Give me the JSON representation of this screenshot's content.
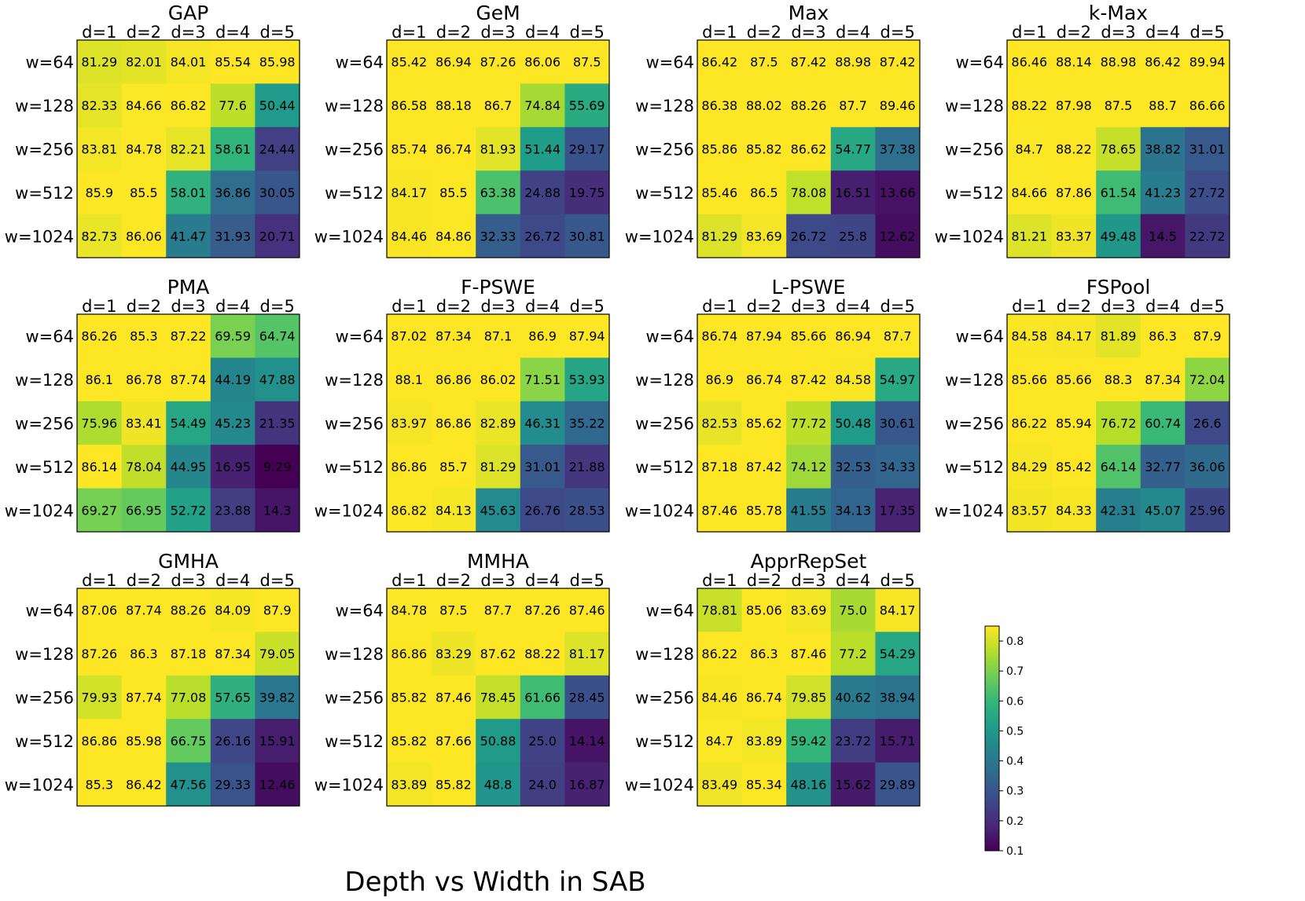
{
  "figure_title": "Depth vs Width in SAB",
  "colormap": {
    "name": "viridis",
    "stops": [
      "#440154",
      "#482878",
      "#3e4989",
      "#31688e",
      "#26828e",
      "#1f9e89",
      "#35b779",
      "#6ece58",
      "#b5de2b",
      "#fde725"
    ]
  },
  "colorbar": {
    "ticks": [
      "0.1",
      "0.2",
      "0.3",
      "0.4",
      "0.5",
      "0.6",
      "0.7",
      "0.8"
    ],
    "range": [
      0.1,
      0.85
    ]
  },
  "chart_data": [
    {
      "type": "heatmap",
      "title": "GAP",
      "columns": [
        "d=1",
        "d=2",
        "d=3",
        "d=4",
        "d=5"
      ],
      "rows": [
        "w=64",
        "w=128",
        "w=256",
        "w=512",
        "w=1024"
      ],
      "values": [
        [
          81.29,
          82.01,
          84.01,
          85.54,
          85.98
        ],
        [
          82.33,
          84.66,
          86.82,
          77.6,
          50.44
        ],
        [
          83.81,
          84.78,
          82.21,
          58.61,
          24.44
        ],
        [
          85.9,
          85.5,
          58.01,
          36.86,
          30.05
        ],
        [
          82.73,
          86.06,
          41.47,
          31.93,
          20.71
        ]
      ],
      "labels": [
        [
          "81.29",
          "82.01",
          "84.01",
          "85.54",
          "85.98"
        ],
        [
          "82.33",
          "84.66",
          "86.82",
          "77.6",
          "50.44"
        ],
        [
          "83.81",
          "84.78",
          "82.21",
          "58.61",
          "24.44"
        ],
        [
          "85.9",
          "85.5",
          "58.01",
          "36.86",
          "30.05"
        ],
        [
          "82.73",
          "86.06",
          "41.47",
          "31.93",
          "20.71"
        ]
      ]
    },
    {
      "type": "heatmap",
      "title": "GeM",
      "columns": [
        "d=1",
        "d=2",
        "d=3",
        "d=4",
        "d=5"
      ],
      "rows": [
        "w=64",
        "w=128",
        "w=256",
        "w=512",
        "w=1024"
      ],
      "values": [
        [
          85.42,
          86.94,
          87.26,
          86.06,
          87.5
        ],
        [
          86.58,
          88.18,
          86.7,
          74.84,
          55.69
        ],
        [
          85.74,
          86.74,
          81.93,
          51.44,
          29.17
        ],
        [
          84.17,
          85.5,
          63.38,
          24.88,
          19.75
        ],
        [
          84.46,
          84.86,
          32.33,
          26.72,
          30.81
        ]
      ],
      "labels": [
        [
          "85.42",
          "86.94",
          "87.26",
          "86.06",
          "87.5"
        ],
        [
          "86.58",
          "88.18",
          "86.7",
          "74.84",
          "55.69"
        ],
        [
          "85.74",
          "86.74",
          "81.93",
          "51.44",
          "29.17"
        ],
        [
          "84.17",
          "85.5",
          "63.38",
          "24.88",
          "19.75"
        ],
        [
          "84.46",
          "84.86",
          "32.33",
          "26.72",
          "30.81"
        ]
      ]
    },
    {
      "type": "heatmap",
      "title": "Max",
      "columns": [
        "d=1",
        "d=2",
        "d=3",
        "d=4",
        "d=5"
      ],
      "rows": [
        "w=64",
        "w=128",
        "w=256",
        "w=512",
        "w=1024"
      ],
      "values": [
        [
          86.42,
          87.5,
          87.42,
          88.98,
          87.42
        ],
        [
          86.38,
          88.02,
          88.26,
          87.7,
          89.46
        ],
        [
          85.86,
          85.82,
          86.62,
          54.77,
          37.38
        ],
        [
          85.46,
          86.5,
          78.08,
          16.51,
          13.66
        ],
        [
          81.29,
          83.69,
          26.72,
          25.8,
          12.62
        ]
      ],
      "labels": [
        [
          "86.42",
          "87.5",
          "87.42",
          "88.98",
          "87.42"
        ],
        [
          "86.38",
          "88.02",
          "88.26",
          "87.7",
          "89.46"
        ],
        [
          "85.86",
          "85.82",
          "86.62",
          "54.77",
          "37.38"
        ],
        [
          "85.46",
          "86.5",
          "78.08",
          "16.51",
          "13.66"
        ],
        [
          "81.29",
          "83.69",
          "26.72",
          "25.8",
          "12.62"
        ]
      ]
    },
    {
      "type": "heatmap",
      "title": "k-Max",
      "columns": [
        "d=1",
        "d=2",
        "d=3",
        "d=4",
        "d=5"
      ],
      "rows": [
        "w=64",
        "w=128",
        "w=256",
        "w=512",
        "w=1024"
      ],
      "values": [
        [
          86.46,
          88.14,
          88.98,
          86.42,
          89.94
        ],
        [
          88.22,
          87.98,
          87.5,
          88.7,
          86.66
        ],
        [
          84.7,
          88.22,
          78.65,
          38.82,
          31.01
        ],
        [
          84.66,
          87.86,
          61.54,
          41.23,
          27.72
        ],
        [
          81.21,
          83.37,
          49.48,
          14.5,
          22.72
        ]
      ],
      "labels": [
        [
          "86.46",
          "88.14",
          "88.98",
          "86.42",
          "89.94"
        ],
        [
          "88.22",
          "87.98",
          "87.5",
          "88.7",
          "86.66"
        ],
        [
          "84.7",
          "88.22",
          "78.65",
          "38.82",
          "31.01"
        ],
        [
          "84.66",
          "87.86",
          "61.54",
          "41.23",
          "27.72"
        ],
        [
          "81.21",
          "83.37",
          "49.48",
          "14.5",
          "22.72"
        ]
      ]
    },
    {
      "type": "heatmap",
      "title": "PMA",
      "columns": [
        "d=1",
        "d=2",
        "d=3",
        "d=4",
        "d=5"
      ],
      "rows": [
        "w=64",
        "w=128",
        "w=256",
        "w=512",
        "w=1024"
      ],
      "values": [
        [
          86.26,
          85.3,
          87.22,
          69.59,
          64.74
        ],
        [
          86.1,
          86.78,
          87.74,
          44.19,
          47.88
        ],
        [
          75.96,
          83.41,
          54.49,
          45.23,
          21.35
        ],
        [
          86.14,
          78.04,
          44.95,
          16.95,
          9.29
        ],
        [
          69.27,
          66.95,
          52.72,
          23.88,
          14.3
        ]
      ],
      "labels": [
        [
          "86.26",
          "85.3",
          "87.22",
          "69.59",
          "64.74"
        ],
        [
          "86.1",
          "86.78",
          "87.74",
          "44.19",
          "47.88"
        ],
        [
          "75.96",
          "83.41",
          "54.49",
          "45.23",
          "21.35"
        ],
        [
          "86.14",
          "78.04",
          "44.95",
          "16.95",
          "9.29"
        ],
        [
          "69.27",
          "66.95",
          "52.72",
          "23.88",
          "14.3"
        ]
      ]
    },
    {
      "type": "heatmap",
      "title": "F-PSWE",
      "columns": [
        "d=1",
        "d=2",
        "d=3",
        "d=4",
        "d=5"
      ],
      "rows": [
        "w=64",
        "w=128",
        "w=256",
        "w=512",
        "w=1024"
      ],
      "values": [
        [
          87.02,
          87.34,
          87.1,
          86.9,
          87.94
        ],
        [
          88.1,
          86.86,
          86.02,
          71.51,
          53.93
        ],
        [
          83.97,
          86.86,
          82.89,
          46.31,
          35.22
        ],
        [
          86.86,
          85.7,
          81.29,
          31.01,
          21.88
        ],
        [
          86.82,
          84.13,
          45.63,
          26.76,
          28.53
        ]
      ],
      "labels": [
        [
          "87.02",
          "87.34",
          "87.1",
          "86.9",
          "87.94"
        ],
        [
          "88.1",
          "86.86",
          "86.02",
          "71.51",
          "53.93"
        ],
        [
          "83.97",
          "86.86",
          "82.89",
          "46.31",
          "35.22"
        ],
        [
          "86.86",
          "85.7",
          "81.29",
          "31.01",
          "21.88"
        ],
        [
          "86.82",
          "84.13",
          "45.63",
          "26.76",
          "28.53"
        ]
      ]
    },
    {
      "type": "heatmap",
      "title": "L-PSWE",
      "columns": [
        "d=1",
        "d=2",
        "d=3",
        "d=4",
        "d=5"
      ],
      "rows": [
        "w=64",
        "w=128",
        "w=256",
        "w=512",
        "w=1024"
      ],
      "values": [
        [
          86.74,
          87.94,
          85.66,
          86.94,
          87.7
        ],
        [
          86.9,
          86.74,
          87.42,
          84.58,
          54.97
        ],
        [
          82.53,
          85.62,
          77.72,
          50.48,
          30.61
        ],
        [
          87.18,
          87.42,
          74.12,
          32.53,
          34.33
        ],
        [
          87.46,
          85.78,
          41.55,
          34.13,
          17.35
        ]
      ],
      "labels": [
        [
          "86.74",
          "87.94",
          "85.66",
          "86.94",
          "87.7"
        ],
        [
          "86.9",
          "86.74",
          "87.42",
          "84.58",
          "54.97"
        ],
        [
          "82.53",
          "85.62",
          "77.72",
          "50.48",
          "30.61"
        ],
        [
          "87.18",
          "87.42",
          "74.12",
          "32.53",
          "34.33"
        ],
        [
          "87.46",
          "85.78",
          "41.55",
          "34.13",
          "17.35"
        ]
      ]
    },
    {
      "type": "heatmap",
      "title": "FSPool",
      "columns": [
        "d=1",
        "d=2",
        "d=3",
        "d=4",
        "d=5"
      ],
      "rows": [
        "w=64",
        "w=128",
        "w=256",
        "w=512",
        "w=1024"
      ],
      "values": [
        [
          84.58,
          84.17,
          81.89,
          86.3,
          87.9
        ],
        [
          85.66,
          85.66,
          88.3,
          87.34,
          72.04
        ],
        [
          86.22,
          85.94,
          76.72,
          60.74,
          26.6
        ],
        [
          84.29,
          85.42,
          64.14,
          32.77,
          36.06
        ],
        [
          83.57,
          84.33,
          42.31,
          45.07,
          25.96
        ]
      ],
      "labels": [
        [
          "84.58",
          "84.17",
          "81.89",
          "86.3",
          "87.9"
        ],
        [
          "85.66",
          "85.66",
          "88.3",
          "87.34",
          "72.04"
        ],
        [
          "86.22",
          "85.94",
          "76.72",
          "60.74",
          "26.6"
        ],
        [
          "84.29",
          "85.42",
          "64.14",
          "32.77",
          "36.06"
        ],
        [
          "83.57",
          "84.33",
          "42.31",
          "45.07",
          "25.96"
        ]
      ]
    },
    {
      "type": "heatmap",
      "title": "GMHA",
      "columns": [
        "d=1",
        "d=2",
        "d=3",
        "d=4",
        "d=5"
      ],
      "rows": [
        "w=64",
        "w=128",
        "w=256",
        "w=512",
        "w=1024"
      ],
      "values": [
        [
          87.06,
          87.74,
          88.26,
          84.09,
          87.9
        ],
        [
          87.26,
          86.3,
          87.18,
          87.34,
          79.05
        ],
        [
          79.93,
          87.74,
          77.08,
          57.65,
          39.82
        ],
        [
          86.86,
          85.98,
          66.75,
          26.16,
          15.91
        ],
        [
          85.3,
          86.42,
          47.56,
          29.33,
          12.46
        ]
      ],
      "labels": [
        [
          "87.06",
          "87.74",
          "88.26",
          "84.09",
          "87.9"
        ],
        [
          "87.26",
          "86.3",
          "87.18",
          "87.34",
          "79.05"
        ],
        [
          "79.93",
          "87.74",
          "77.08",
          "57.65",
          "39.82"
        ],
        [
          "86.86",
          "85.98",
          "66.75",
          "26.16",
          "15.91"
        ],
        [
          "85.3",
          "86.42",
          "47.56",
          "29.33",
          "12.46"
        ]
      ]
    },
    {
      "type": "heatmap",
      "title": "MMHA",
      "columns": [
        "d=1",
        "d=2",
        "d=3",
        "d=4",
        "d=5"
      ],
      "rows": [
        "w=64",
        "w=128",
        "w=256",
        "w=512",
        "w=1024"
      ],
      "values": [
        [
          84.78,
          87.5,
          87.7,
          87.26,
          87.46
        ],
        [
          86.86,
          83.29,
          87.62,
          88.22,
          81.17
        ],
        [
          85.82,
          87.46,
          78.45,
          61.66,
          28.45
        ],
        [
          85.82,
          87.66,
          50.88,
          25.0,
          14.14
        ],
        [
          83.89,
          85.82,
          48.8,
          24.0,
          16.87
        ]
      ],
      "labels": [
        [
          "84.78",
          "87.5",
          "87.7",
          "87.26",
          "87.46"
        ],
        [
          "86.86",
          "83.29",
          "87.62",
          "88.22",
          "81.17"
        ],
        [
          "85.82",
          "87.46",
          "78.45",
          "61.66",
          "28.45"
        ],
        [
          "85.82",
          "87.66",
          "50.88",
          "25.0",
          "14.14"
        ],
        [
          "83.89",
          "85.82",
          "48.8",
          "24.0",
          "16.87"
        ]
      ]
    },
    {
      "type": "heatmap",
      "title": "ApprRepSet",
      "columns": [
        "d=1",
        "d=2",
        "d=3",
        "d=4",
        "d=5"
      ],
      "rows": [
        "w=64",
        "w=128",
        "w=256",
        "w=512",
        "w=1024"
      ],
      "values": [
        [
          78.81,
          85.06,
          83.69,
          75.0,
          84.17
        ],
        [
          86.22,
          86.3,
          87.46,
          77.2,
          54.29
        ],
        [
          84.46,
          86.74,
          79.85,
          40.62,
          38.94
        ],
        [
          84.7,
          83.89,
          59.42,
          23.72,
          15.71
        ],
        [
          83.49,
          85.34,
          48.16,
          15.62,
          29.89
        ]
      ],
      "labels": [
        [
          "78.81",
          "85.06",
          "83.69",
          "75.0",
          "84.17"
        ],
        [
          "86.22",
          "86.3",
          "87.46",
          "77.2",
          "54.29"
        ],
        [
          "84.46",
          "86.74",
          "79.85",
          "40.62",
          "38.94"
        ],
        [
          "84.7",
          "83.89",
          "59.42",
          "23.72",
          "15.71"
        ],
        [
          "83.49",
          "85.34",
          "48.16",
          "15.62",
          "29.89"
        ]
      ]
    }
  ]
}
